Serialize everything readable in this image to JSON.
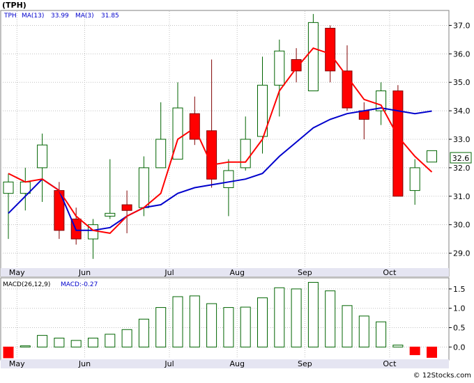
{
  "title": "(TPH)",
  "watermark": "© 12Stocks.com",
  "legend": {
    "ticker": "TPH",
    "ma13_label": "MA(13)",
    "ma13_value": "33.99",
    "ma3_label": "MA(3)",
    "ma3_value": "31.85"
  },
  "macd_legend": {
    "label": "MACD(26,12,9)",
    "value_label": "MACD:-0.27"
  },
  "last_price_label": "32.6",
  "colors": {
    "up": "#ffffff",
    "up_stroke": "#006400",
    "down": "#ff0000",
    "down_stroke": "#800000",
    "ma13": "#0000cc",
    "ma3": "#ff0000",
    "grid": "#c0c0c0",
    "axis_band": "#e5e5f2",
    "macd_pos": "#006400",
    "macd_neg": "#ff0000",
    "legend_text": "#0000cc"
  },
  "chart_data": [
    {
      "type": "candlestick",
      "ylim": [
        28.5,
        37.5
      ],
      "yticks": [
        "29.0",
        "30.0",
        "31.0",
        "32.0",
        "33.0",
        "34.0",
        "35.0",
        "36.0",
        "37.0"
      ],
      "x_labels": [
        {
          "label": "May",
          "index": 1
        },
        {
          "label": "Jun",
          "index": 5
        },
        {
          "label": "Jul",
          "index": 10
        },
        {
          "label": "Aug",
          "index": 14
        },
        {
          "label": "Sep",
          "index": 18
        },
        {
          "label": "Oct",
          "index": 23
        }
      ],
      "candles": [
        {
          "o": 31.1,
          "h": 31.8,
          "l": 29.5,
          "c": 31.5
        },
        {
          "o": 31.1,
          "h": 32.0,
          "l": 30.5,
          "c": 31.5
        },
        {
          "o": 32.0,
          "h": 33.2,
          "l": 30.8,
          "c": 32.8
        },
        {
          "o": 31.2,
          "h": 31.5,
          "l": 29.5,
          "c": 29.8
        },
        {
          "o": 30.2,
          "h": 30.6,
          "l": 29.3,
          "c": 29.5
        },
        {
          "o": 29.5,
          "h": 30.2,
          "l": 28.8,
          "c": 30.0
        },
        {
          "o": 30.3,
          "h": 32.3,
          "l": 30.2,
          "c": 30.4
        },
        {
          "o": 30.7,
          "h": 31.2,
          "l": 29.7,
          "c": 30.5
        },
        {
          "o": 30.6,
          "h": 32.4,
          "l": 30.3,
          "c": 32.0
        },
        {
          "o": 32.0,
          "h": 34.3,
          "l": 32.0,
          "c": 33.0
        },
        {
          "o": 32.3,
          "h": 35.0,
          "l": 32.3,
          "c": 34.1
        },
        {
          "o": 33.9,
          "h": 34.5,
          "l": 32.8,
          "c": 33.0
        },
        {
          "o": 33.3,
          "h": 35.8,
          "l": 31.3,
          "c": 31.6
        },
        {
          "o": 31.3,
          "h": 32.3,
          "l": 30.3,
          "c": 31.9
        },
        {
          "o": 32.0,
          "h": 33.8,
          "l": 31.9,
          "c": 33.0
        },
        {
          "o": 33.1,
          "h": 35.9,
          "l": 32.5,
          "c": 34.9
        },
        {
          "o": 34.9,
          "h": 36.5,
          "l": 33.8,
          "c": 36.1
        },
        {
          "o": 35.8,
          "h": 36.2,
          "l": 35.0,
          "c": 35.4
        },
        {
          "o": 34.7,
          "h": 37.4,
          "l": 34.7,
          "c": 37.1
        },
        {
          "o": 36.9,
          "h": 37.0,
          "l": 35.0,
          "c": 35.4
        },
        {
          "o": 35.4,
          "h": 36.3,
          "l": 34.0,
          "c": 34.1
        },
        {
          "o": 34.0,
          "h": 34.3,
          "l": 33.0,
          "c": 33.7
        },
        {
          "o": 34.0,
          "h": 35.0,
          "l": 33.5,
          "c": 34.7
        },
        {
          "o": 34.7,
          "h": 34.9,
          "l": 31.0,
          "c": 31.0
        },
        {
          "o": 31.2,
          "h": 32.3,
          "l": 30.7,
          "c": 32.0
        },
        {
          "o": 32.2,
          "h": 32.6,
          "l": 32.2,
          "c": 32.6
        }
      ],
      "series": [
        {
          "name": "MA(13)",
          "start": 0,
          "values": [
            30.4,
            31.0,
            31.6,
            31.2,
            29.8,
            29.8,
            29.9,
            30.3,
            30.6,
            30.7,
            31.1,
            31.3,
            31.4,
            31.5,
            31.6,
            31.8,
            32.4,
            32.9,
            33.4,
            33.7,
            33.9,
            34.0,
            34.1,
            34.0,
            33.9,
            33.99
          ]
        },
        {
          "name": "MA(3)",
          "start": 0,
          "values": [
            31.8,
            31.5,
            31.6,
            31.2,
            30.3,
            29.8,
            29.7,
            30.3,
            30.6,
            31.1,
            33.0,
            33.4,
            32.1,
            32.2,
            32.2,
            33.0,
            34.7,
            35.5,
            36.2,
            36.0,
            35.2,
            34.4,
            34.2,
            33.1,
            32.4,
            31.85
          ]
        }
      ]
    },
    {
      "type": "bar",
      "title": "MACD(26,12,9)",
      "ylim": [
        -0.3,
        1.75
      ],
      "yticks": [
        "0.0",
        "0.5",
        "1.0",
        "1.5"
      ],
      "values": [
        -0.28,
        0.03,
        0.3,
        0.23,
        0.17,
        0.23,
        0.33,
        0.45,
        0.72,
        1.02,
        1.3,
        1.32,
        1.12,
        1.02,
        1.03,
        1.27,
        1.53,
        1.5,
        1.67,
        1.45,
        1.07,
        0.8,
        0.65,
        0.05,
        -0.2,
        -0.27
      ]
    }
  ]
}
